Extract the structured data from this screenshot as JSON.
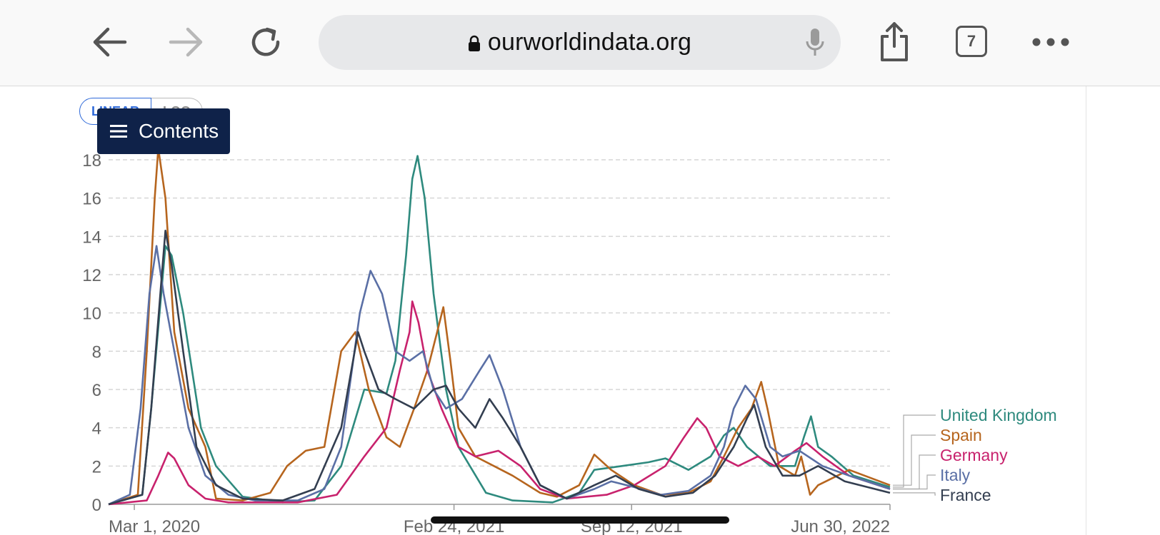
{
  "browser": {
    "url": "ourworldindata.org",
    "tab_count": "7",
    "icons": [
      "back-icon",
      "forward-icon",
      "reload-icon",
      "lock-icon",
      "microphone-icon",
      "share-icon",
      "tabs-icon",
      "more-icon"
    ]
  },
  "page": {
    "scale_options": [
      "LINEAR",
      "LOG"
    ],
    "contents_label": "Contents"
  },
  "chart_data": {
    "type": "line",
    "xlim": [
      "2020-02-01",
      "2022-06-30"
    ],
    "ylim": [
      0,
      18
    ],
    "y_ticks": [
      0,
      2,
      4,
      6,
      8,
      10,
      12,
      14,
      16,
      18
    ],
    "x_tick_labels": [
      {
        "date": "2020-03-01",
        "label": "Mar 1, 2020"
      },
      {
        "date": "2021-02-24",
        "label": "Feb 24, 2021"
      },
      {
        "date": "2021-09-12",
        "label": "Sep 12, 2021"
      },
      {
        "date": "2022-06-30",
        "label": "Jun 30, 2022"
      }
    ],
    "grid": "horizontal-dashed",
    "legend": "right",
    "series": [
      {
        "name": "United Kingdom",
        "color": "#2e8a7e",
        "points": [
          [
            "2020-02-01",
            0
          ],
          [
            "2020-03-10",
            0.5
          ],
          [
            "2020-03-20",
            5
          ],
          [
            "2020-04-05",
            13.5
          ],
          [
            "2020-04-12",
            13
          ],
          [
            "2020-04-25",
            10
          ],
          [
            "2020-05-15",
            4
          ],
          [
            "2020-06-01",
            2
          ],
          [
            "2020-07-01",
            0.4
          ],
          [
            "2020-08-15",
            0.1
          ],
          [
            "2020-09-20",
            0.2
          ],
          [
            "2020-10-20",
            2
          ],
          [
            "2020-11-15",
            6
          ],
          [
            "2020-12-10",
            5.8
          ],
          [
            "2020-12-20",
            7.5
          ],
          [
            "2021-01-01",
            13
          ],
          [
            "2021-01-08",
            17
          ],
          [
            "2021-01-14",
            18.2
          ],
          [
            "2021-01-22",
            16
          ],
          [
            "2021-02-01",
            11
          ],
          [
            "2021-02-15",
            6
          ],
          [
            "2021-03-01",
            3
          ],
          [
            "2021-04-01",
            0.6
          ],
          [
            "2021-05-01",
            0.2
          ],
          [
            "2021-06-15",
            0.1
          ],
          [
            "2021-07-15",
            0.6
          ],
          [
            "2021-08-01",
            1.8
          ],
          [
            "2021-09-01",
            2
          ],
          [
            "2021-10-01",
            2.2
          ],
          [
            "2021-10-20",
            2.4
          ],
          [
            "2021-11-15",
            1.8
          ],
          [
            "2021-12-10",
            2.5
          ],
          [
            "2021-12-25",
            3.6
          ],
          [
            "2022-01-05",
            4
          ],
          [
            "2022-01-20",
            3
          ],
          [
            "2022-02-15",
            2
          ],
          [
            "2022-03-15",
            2
          ],
          [
            "2022-03-25",
            3.5
          ],
          [
            "2022-04-02",
            4.6
          ],
          [
            "2022-04-10",
            3
          ],
          [
            "2022-04-25",
            2.5
          ],
          [
            "2022-05-20",
            1.5
          ],
          [
            "2022-06-30",
            0.9
          ]
        ]
      },
      {
        "name": "Spain",
        "color": "#b6651e",
        "points": [
          [
            "2020-02-01",
            0
          ],
          [
            "2020-03-05",
            0.5
          ],
          [
            "2020-03-15",
            8
          ],
          [
            "2020-03-24",
            16
          ],
          [
            "2020-03-28",
            18.6
          ],
          [
            "2020-04-05",
            16
          ],
          [
            "2020-04-15",
            9
          ],
          [
            "2020-05-01",
            5
          ],
          [
            "2020-05-20",
            3
          ],
          [
            "2020-06-01",
            0.3
          ],
          [
            "2020-07-01",
            0.2
          ],
          [
            "2020-08-01",
            0.6
          ],
          [
            "2020-08-20",
            2
          ],
          [
            "2020-09-10",
            2.8
          ],
          [
            "2020-10-01",
            3
          ],
          [
            "2020-10-20",
            8
          ],
          [
            "2020-11-05",
            9
          ],
          [
            "2020-11-20",
            6
          ],
          [
            "2020-12-10",
            3.5
          ],
          [
            "2020-12-25",
            3
          ],
          [
            "2021-01-10",
            5
          ],
          [
            "2021-01-25",
            7
          ],
          [
            "2021-02-05",
            9
          ],
          [
            "2021-02-12",
            10.3
          ],
          [
            "2021-02-20",
            7.5
          ],
          [
            "2021-03-01",
            4
          ],
          [
            "2021-03-20",
            2.5
          ],
          [
            "2021-04-10",
            2
          ],
          [
            "2021-05-01",
            1.5
          ],
          [
            "2021-06-01",
            0.6
          ],
          [
            "2021-06-20",
            0.4
          ],
          [
            "2021-07-15",
            1
          ],
          [
            "2021-08-01",
            2.6
          ],
          [
            "2021-08-20",
            1.8
          ],
          [
            "2021-09-15",
            1
          ],
          [
            "2021-10-15",
            0.5
          ],
          [
            "2021-11-15",
            0.6
          ],
          [
            "2021-12-10",
            1.2
          ],
          [
            "2021-12-25",
            2.5
          ],
          [
            "2022-01-10",
            4
          ],
          [
            "2022-01-25",
            5
          ],
          [
            "2022-02-05",
            6.4
          ],
          [
            "2022-02-12",
            5
          ],
          [
            "2022-02-25",
            2
          ],
          [
            "2022-03-15",
            1.5
          ],
          [
            "2022-03-22",
            2.5
          ],
          [
            "2022-04-01",
            0.5
          ],
          [
            "2022-04-10",
            1
          ],
          [
            "2022-05-15",
            1.8
          ],
          [
            "2022-06-30",
            1
          ]
        ]
      },
      {
        "name": "Germany",
        "color": "#c8226d",
        "points": [
          [
            "2020-02-01",
            0
          ],
          [
            "2020-03-15",
            0.2
          ],
          [
            "2020-03-28",
            1.5
          ],
          [
            "2020-04-08",
            2.7
          ],
          [
            "2020-04-15",
            2.4
          ],
          [
            "2020-05-01",
            1
          ],
          [
            "2020-05-20",
            0.3
          ],
          [
            "2020-06-15",
            0.1
          ],
          [
            "2020-09-01",
            0.1
          ],
          [
            "2020-10-15",
            0.5
          ],
          [
            "2020-11-15",
            2.5
          ],
          [
            "2020-12-10",
            4
          ],
          [
            "2020-12-25",
            7
          ],
          [
            "2021-01-05",
            9
          ],
          [
            "2021-01-08",
            10.6
          ],
          [
            "2021-01-15",
            9.5
          ],
          [
            "2021-01-25",
            7
          ],
          [
            "2021-02-10",
            5
          ],
          [
            "2021-03-01",
            3
          ],
          [
            "2021-03-20",
            2.5
          ],
          [
            "2021-04-15",
            2.8
          ],
          [
            "2021-05-10",
            2
          ],
          [
            "2021-06-01",
            0.8
          ],
          [
            "2021-07-01",
            0.3
          ],
          [
            "2021-08-15",
            0.5
          ],
          [
            "2021-09-15",
            1
          ],
          [
            "2021-10-20",
            2
          ],
          [
            "2021-11-10",
            3.5
          ],
          [
            "2021-11-25",
            4.5
          ],
          [
            "2021-12-05",
            4
          ],
          [
            "2021-12-20",
            2.5
          ],
          [
            "2022-01-10",
            2
          ],
          [
            "2022-02-01",
            2.5
          ],
          [
            "2022-02-20",
            2
          ],
          [
            "2022-03-15",
            2.8
          ],
          [
            "2022-03-28",
            3.2
          ],
          [
            "2022-04-15",
            2.5
          ],
          [
            "2022-05-15",
            1.5
          ],
          [
            "2022-06-30",
            0.8
          ]
        ]
      },
      {
        "name": "Italy",
        "color": "#5a6fa5",
        "points": [
          [
            "2020-02-01",
            0
          ],
          [
            "2020-02-25",
            0.5
          ],
          [
            "2020-03-08",
            5
          ],
          [
            "2020-03-18",
            11
          ],
          [
            "2020-03-26",
            13.5
          ],
          [
            "2020-04-03",
            11
          ],
          [
            "2020-04-15",
            8
          ],
          [
            "2020-05-01",
            4
          ],
          [
            "2020-05-20",
            1.5
          ],
          [
            "2020-06-15",
            0.5
          ],
          [
            "2020-07-15",
            0.2
          ],
          [
            "2020-09-01",
            0.2
          ],
          [
            "2020-10-01",
            0.8
          ],
          [
            "2020-10-20",
            3
          ],
          [
            "2020-11-10",
            10
          ],
          [
            "2020-11-22",
            12.2
          ],
          [
            "2020-12-05",
            11
          ],
          [
            "2020-12-20",
            8
          ],
          [
            "2021-01-05",
            7.5
          ],
          [
            "2021-01-20",
            8
          ],
          [
            "2021-02-01",
            6
          ],
          [
            "2021-02-15",
            5
          ],
          [
            "2021-03-05",
            5.5
          ],
          [
            "2021-03-25",
            7
          ],
          [
            "2021-04-05",
            7.8
          ],
          [
            "2021-04-20",
            6
          ],
          [
            "2021-05-10",
            3
          ],
          [
            "2021-06-01",
            1
          ],
          [
            "2021-07-01",
            0.3
          ],
          [
            "2021-08-01",
            0.8
          ],
          [
            "2021-08-20",
            1.2
          ],
          [
            "2021-09-15",
            0.9
          ],
          [
            "2021-10-15",
            0.5
          ],
          [
            "2021-11-15",
            0.7
          ],
          [
            "2021-12-10",
            1.5
          ],
          [
            "2021-12-25",
            3
          ],
          [
            "2022-01-05",
            5
          ],
          [
            "2022-01-18",
            6.2
          ],
          [
            "2022-01-30",
            5.5
          ],
          [
            "2022-02-15",
            3
          ],
          [
            "2022-03-01",
            2.5
          ],
          [
            "2022-03-20",
            2.8
          ],
          [
            "2022-04-15",
            2
          ],
          [
            "2022-05-15",
            1.5
          ],
          [
            "2022-06-30",
            0.8
          ]
        ]
      },
      {
        "name": "France",
        "color": "#333e50",
        "points": [
          [
            "2020-02-01",
            0
          ],
          [
            "2020-03-10",
            0.5
          ],
          [
            "2020-03-20",
            5
          ],
          [
            "2020-04-01",
            12
          ],
          [
            "2020-04-05",
            14.3
          ],
          [
            "2020-04-12",
            12.5
          ],
          [
            "2020-04-25",
            8
          ],
          [
            "2020-05-10",
            3
          ],
          [
            "2020-06-01",
            1
          ],
          [
            "2020-07-01",
            0.3
          ],
          [
            "2020-08-15",
            0.2
          ],
          [
            "2020-09-20",
            0.8
          ],
          [
            "2020-10-20",
            4
          ],
          [
            "2020-11-08",
            9
          ],
          [
            "2020-11-15",
            8
          ],
          [
            "2020-12-01",
            6
          ],
          [
            "2020-12-20",
            5.5
          ],
          [
            "2021-01-10",
            5
          ],
          [
            "2021-02-01",
            6
          ],
          [
            "2021-02-15",
            6.2
          ],
          [
            "2021-03-01",
            5
          ],
          [
            "2021-03-20",
            4
          ],
          [
            "2021-04-05",
            5.5
          ],
          [
            "2021-04-20",
            4.5
          ],
          [
            "2021-05-10",
            3
          ],
          [
            "2021-06-01",
            1
          ],
          [
            "2021-07-01",
            0.3
          ],
          [
            "2021-08-01",
            1
          ],
          [
            "2021-08-25",
            1.5
          ],
          [
            "2021-09-20",
            0.8
          ],
          [
            "2021-10-20",
            0.4
          ],
          [
            "2021-11-20",
            0.6
          ],
          [
            "2021-12-15",
            1.5
          ],
          [
            "2022-01-05",
            3
          ],
          [
            "2022-01-20",
            4.5
          ],
          [
            "2022-01-28",
            5.2
          ],
          [
            "2022-02-10",
            3
          ],
          [
            "2022-03-01",
            1.5
          ],
          [
            "2022-03-20",
            1.5
          ],
          [
            "2022-04-10",
            2
          ],
          [
            "2022-05-10",
            1.2
          ],
          [
            "2022-06-30",
            0.6
          ]
        ]
      }
    ]
  }
}
